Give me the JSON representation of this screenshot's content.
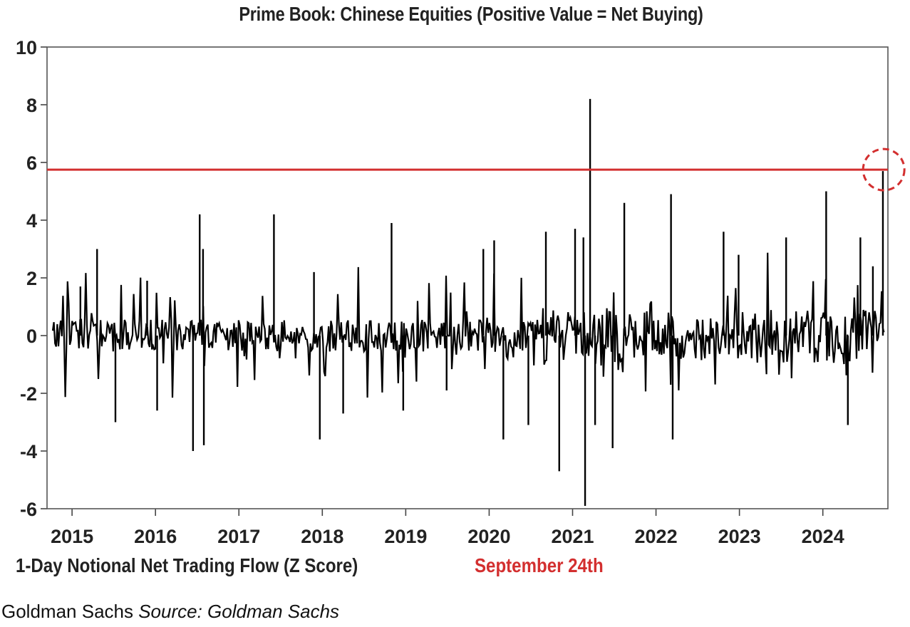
{
  "chart_data": {
    "type": "bar",
    "title": "Prime Book: Chinese Equities (Positive Value = Net Buying)",
    "xlabel": "1-Day Notional Net Trading Flow (Z Score)",
    "ylabel": "",
    "ylim": [
      -6,
      10
    ],
    "yticks": [
      "10",
      "8",
      "6",
      "4",
      "2",
      "0",
      "-2",
      "-4",
      "-6"
    ],
    "xlim": [
      2014.7,
      2024.78
    ],
    "xticks": [
      "2015",
      "2016",
      "2017",
      "2018",
      "2019",
      "2020",
      "2021",
      "2022",
      "2023",
      "2024"
    ],
    "reference_line": {
      "value": 5.75,
      "color": "#d32f2f"
    },
    "annotation": {
      "text": "September 24th",
      "color": "#d32f2f",
      "circle_at": [
        2024.73,
        5.75
      ]
    },
    "series": [
      {
        "color": "#000000",
        "points": [
          [
            2015.1,
            1.7
          ],
          [
            2015.3,
            3.0
          ],
          [
            2015.52,
            -3.0
          ],
          [
            2015.9,
            1.9
          ],
          [
            2016.02,
            -2.6
          ],
          [
            2016.45,
            -4.0
          ],
          [
            2016.53,
            4.2
          ],
          [
            2016.57,
            3.0
          ],
          [
            2016.58,
            -3.8
          ],
          [
            2017.42,
            4.2
          ],
          [
            2017.9,
            2.2
          ],
          [
            2017.97,
            -3.6
          ],
          [
            2018.25,
            -2.7
          ],
          [
            2018.83,
            3.9
          ],
          [
            2018.97,
            -2.6
          ],
          [
            2019.49,
            -1.9
          ],
          [
            2019.93,
            3.0
          ],
          [
            2020.06,
            3.3
          ],
          [
            2020.17,
            -3.6
          ],
          [
            2020.47,
            -3.1
          ],
          [
            2020.68,
            3.6
          ],
          [
            2020.84,
            -4.7
          ],
          [
            2021.03,
            3.7
          ],
          [
            2021.13,
            3.4
          ],
          [
            2021.15,
            -5.9
          ],
          [
            2021.21,
            8.2
          ],
          [
            2021.27,
            -3.1
          ],
          [
            2021.48,
            -3.9
          ],
          [
            2021.62,
            4.6
          ],
          [
            2022.18,
            4.9
          ],
          [
            2022.2,
            -3.6
          ],
          [
            2022.81,
            3.6
          ],
          [
            2022.99,
            2.8
          ],
          [
            2023.56,
            3.4
          ],
          [
            2024.04,
            5.0
          ],
          [
            2024.3,
            -3.1
          ],
          [
            2024.45,
            3.4
          ],
          [
            2024.6,
            2.4
          ],
          [
            2024.72,
            5.7
          ]
        ]
      }
    ]
  },
  "caption": {
    "publisher": "Goldman Sachs",
    "source": "Source: Goldman Sachs"
  }
}
